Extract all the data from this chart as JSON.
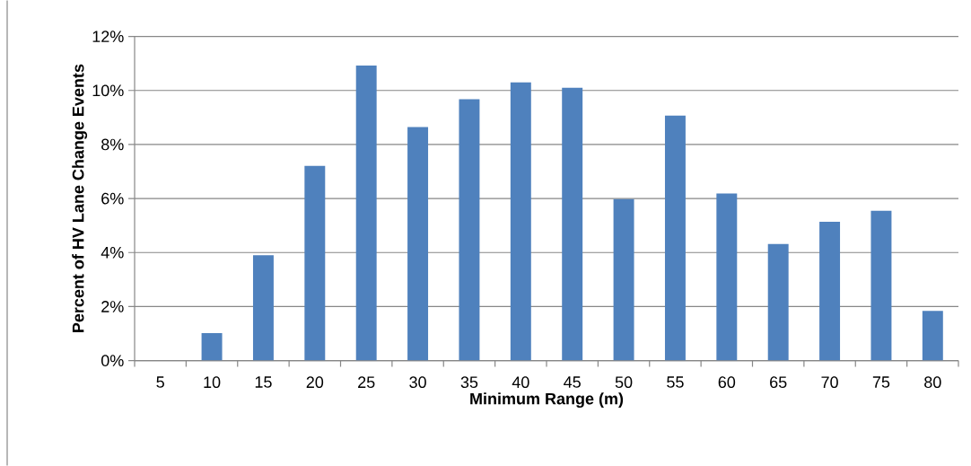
{
  "chart_data": {
    "type": "bar",
    "xlabel": "Minimum Range (m)",
    "ylabel": "Percent of HV Lane Change Events",
    "categories": [
      "5",
      "10",
      "15",
      "20",
      "25",
      "30",
      "35",
      "40",
      "45",
      "50",
      "55",
      "60",
      "65",
      "70",
      "75",
      "80"
    ],
    "values": [
      0,
      1.02,
      3.9,
      7.21,
      10.92,
      8.65,
      9.68,
      10.3,
      10.1,
      5.98,
      9.07,
      6.19,
      4.32,
      5.14,
      5.55,
      1.84
    ],
    "color": "#4f81bd",
    "ylim": [
      0,
      12
    ],
    "yticks": [
      {
        "value": 0,
        "label": "0%"
      },
      {
        "value": 2,
        "label": "2%"
      },
      {
        "value": 4,
        "label": "4%"
      },
      {
        "value": 6,
        "label": "6%"
      },
      {
        "value": 8,
        "label": "8%"
      },
      {
        "value": 10,
        "label": "10%"
      },
      {
        "value": 12,
        "label": "12%"
      }
    ],
    "grid": true
  }
}
